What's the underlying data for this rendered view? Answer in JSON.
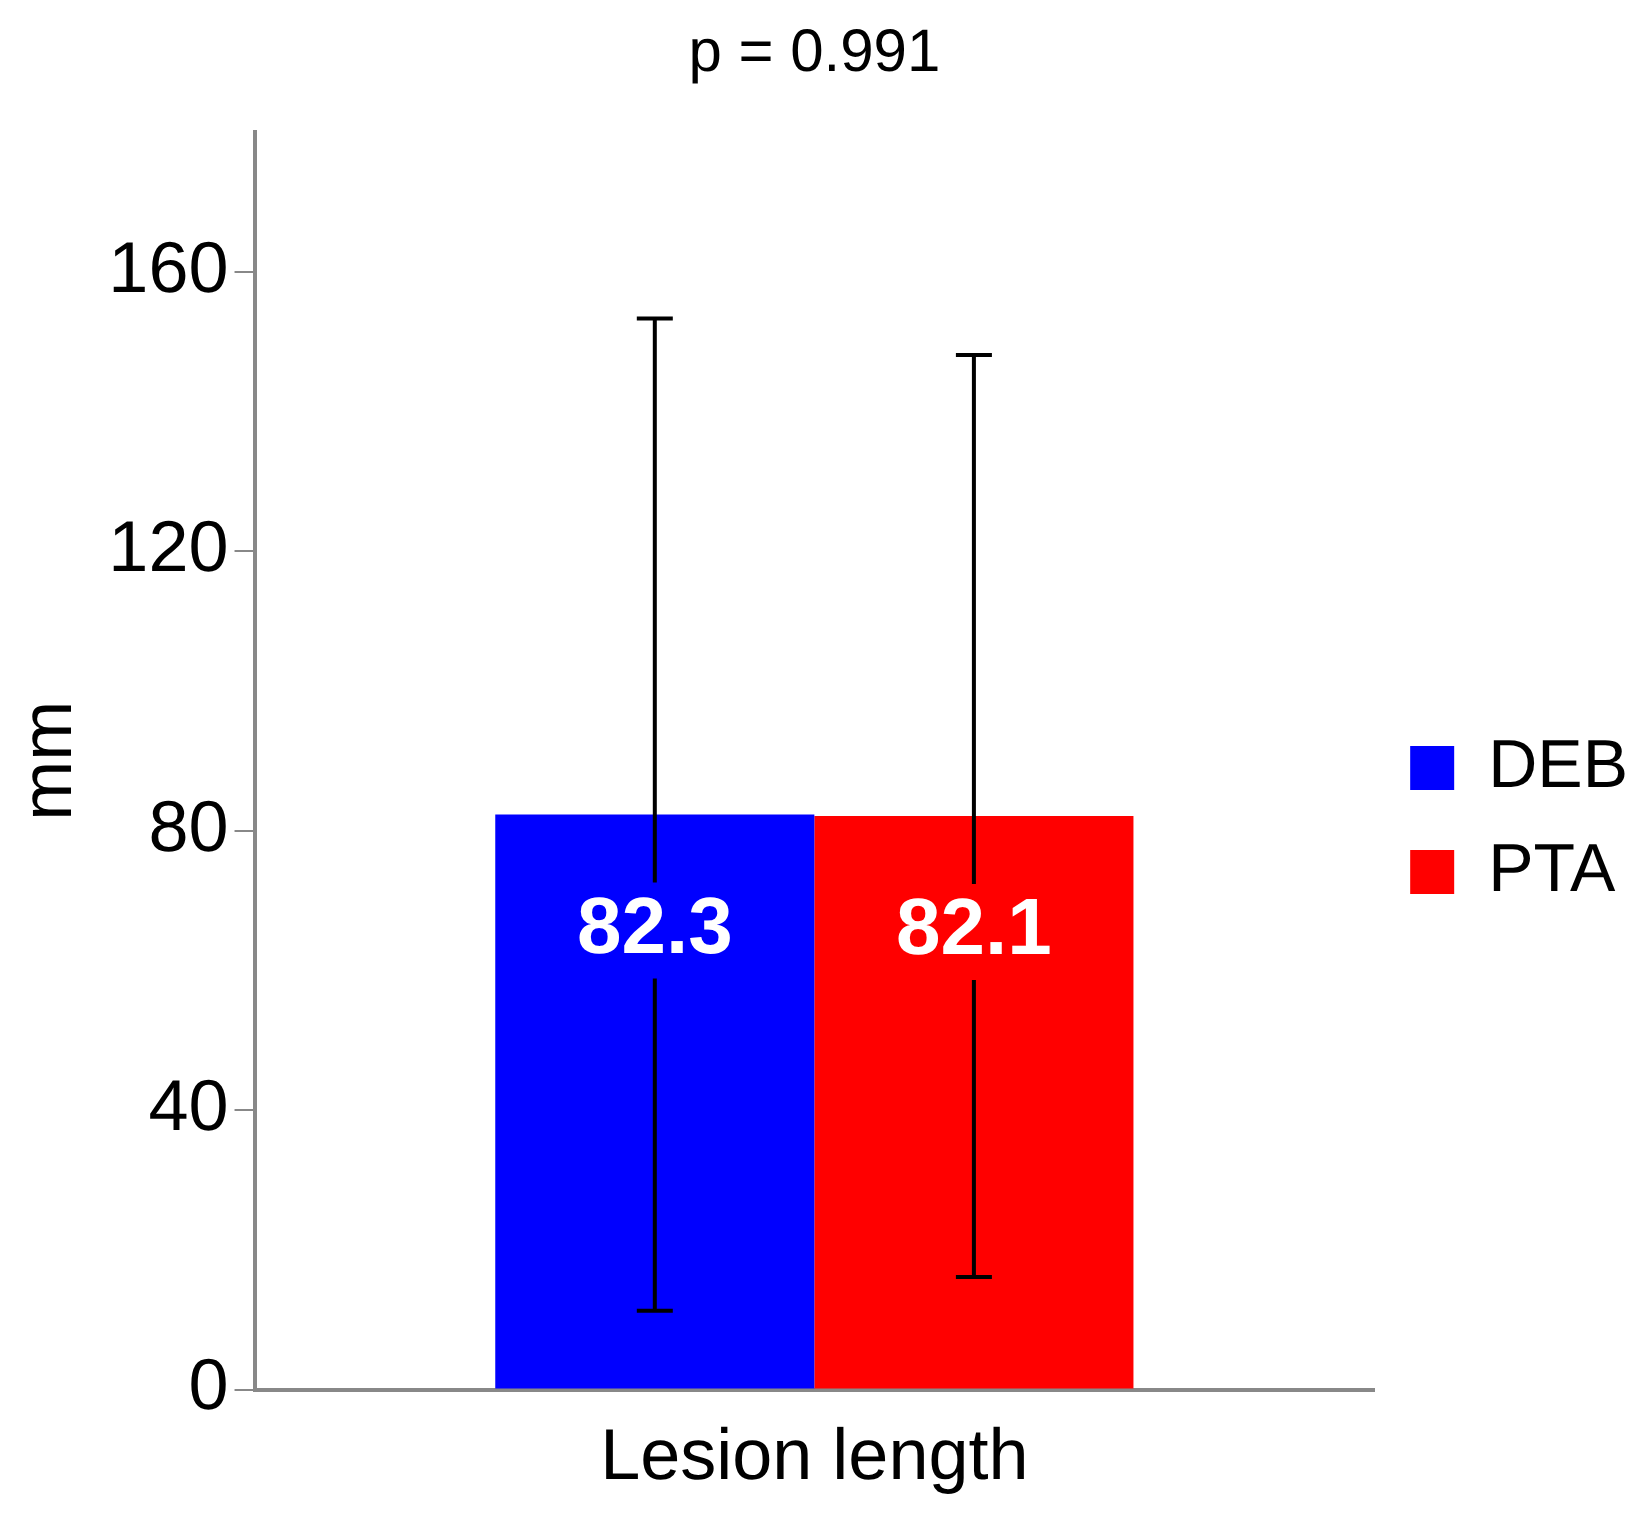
{
  "chart_data": {
    "type": "bar",
    "categories": [
      "Lesion length"
    ],
    "series": [
      {
        "name": "DEB",
        "color": "#0000ff",
        "values": [
          82.3
        ],
        "errors": [
          71
        ]
      },
      {
        "name": "PTA",
        "color": "#ff0000",
        "values": [
          82.1
        ],
        "errors": [
          66
        ]
      }
    ],
    "ylabel": "mm",
    "ylim": [
      0,
      180
    ],
    "yticks": [
      0,
      40,
      80,
      120,
      160
    ],
    "annotations": [
      "p = 0.991"
    ],
    "data_labels": true,
    "legend": "right",
    "grid": false
  }
}
